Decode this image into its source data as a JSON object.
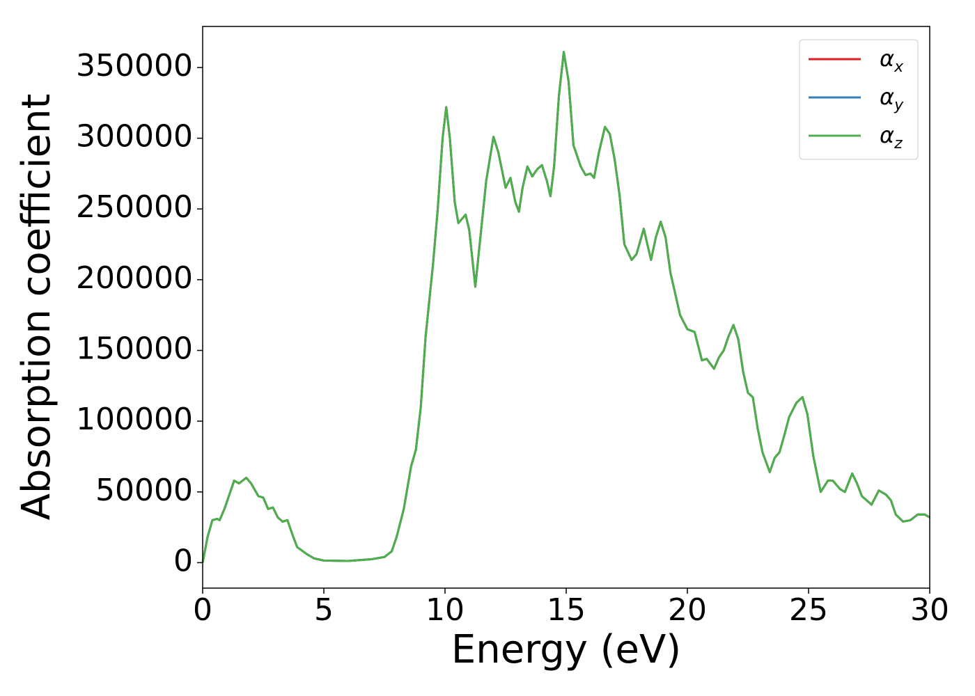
{
  "chart_data": {
    "type": "line",
    "xlabel": "Energy (eV)",
    "ylabel": "Absorption coefficient",
    "x": [
      0,
      0.2,
      0.4,
      0.6,
      0.7,
      0.9,
      1.1,
      1.3,
      1.5,
      1.8,
      2.0,
      2.3,
      2.5,
      2.7,
      2.9,
      3.1,
      3.3,
      3.5,
      3.7,
      3.9,
      4.3,
      4.6,
      5.0,
      6.0,
      7.0,
      7.5,
      7.8,
      8.0,
      8.3,
      8.6,
      8.8,
      9.0,
      9.2,
      9.5,
      9.7,
      9.9,
      10.05,
      10.2,
      10.4,
      10.55,
      10.85,
      11.0,
      11.25,
      11.4,
      11.7,
      12.0,
      12.2,
      12.5,
      12.7,
      12.9,
      13.05,
      13.2,
      13.4,
      13.6,
      13.8,
      14.0,
      14.2,
      14.35,
      14.5,
      14.7,
      14.9,
      15.1,
      15.3,
      15.6,
      15.8,
      16.0,
      16.15,
      16.35,
      16.6,
      16.8,
      17.0,
      17.2,
      17.4,
      17.7,
      17.9,
      18.2,
      18.5,
      18.7,
      18.9,
      19.1,
      19.3,
      19.5,
      19.7,
      20.0,
      20.3,
      20.6,
      20.8,
      21.1,
      21.3,
      21.5,
      21.7,
      21.9,
      22.1,
      22.3,
      22.5,
      22.7,
      22.9,
      23.1,
      23.4,
      23.6,
      23.8,
      24.0,
      24.2,
      24.5,
      24.75,
      24.95,
      25.2,
      25.5,
      25.8,
      26.0,
      26.3,
      26.5,
      26.8,
      27.0,
      27.2,
      27.6,
      27.9,
      28.2,
      28.4,
      28.6,
      28.9,
      29.2,
      29.5,
      29.8,
      30.0
    ],
    "series": [
      {
        "name": "αx",
        "color": "#e41a1c",
        "values": [
          0,
          18000,
          30000,
          31000,
          30000,
          38000,
          48000,
          58000,
          56000,
          60000,
          56000,
          47000,
          46000,
          38000,
          39000,
          32000,
          29000,
          30000,
          20000,
          11000,
          6000,
          3000,
          1500,
          1200,
          2500,
          4000,
          8000,
          18000,
          38000,
          68000,
          80000,
          110000,
          160000,
          210000,
          250000,
          300000,
          322000,
          300000,
          255000,
          240000,
          246000,
          235000,
          195000,
          220000,
          270000,
          301000,
          290000,
          265000,
          272000,
          255000,
          248000,
          265000,
          280000,
          273000,
          278000,
          281000,
          270000,
          259000,
          280000,
          330000,
          361000,
          340000,
          295000,
          280000,
          274000,
          275000,
          272000,
          290000,
          308000,
          303000,
          285000,
          260000,
          225000,
          214000,
          218000,
          236000,
          214000,
          230000,
          241000,
          230000,
          205000,
          190000,
          175000,
          165000,
          163000,
          143000,
          144000,
          137000,
          145000,
          150000,
          160000,
          168000,
          158000,
          135000,
          120000,
          117000,
          95000,
          78000,
          64000,
          74000,
          78000,
          90000,
          103000,
          113000,
          117000,
          105000,
          75000,
          50000,
          58000,
          58000,
          52000,
          50000,
          63000,
          56000,
          47000,
          41000,
          51000,
          48000,
          44000,
          34000,
          29000,
          30000,
          34000,
          34000,
          32000
        ]
      },
      {
        "name": "αy",
        "color": "#377eb8",
        "values": [
          0,
          18000,
          30000,
          31000,
          30000,
          38000,
          48000,
          58000,
          56000,
          60000,
          56000,
          47000,
          46000,
          38000,
          39000,
          32000,
          29000,
          30000,
          20000,
          11000,
          6000,
          3000,
          1500,
          1200,
          2500,
          4000,
          8000,
          18000,
          38000,
          68000,
          80000,
          110000,
          160000,
          210000,
          250000,
          300000,
          322000,
          300000,
          255000,
          240000,
          246000,
          235000,
          195000,
          220000,
          270000,
          301000,
          290000,
          265000,
          272000,
          255000,
          248000,
          265000,
          280000,
          273000,
          278000,
          281000,
          270000,
          259000,
          280000,
          330000,
          361000,
          340000,
          295000,
          280000,
          274000,
          275000,
          272000,
          290000,
          308000,
          303000,
          285000,
          260000,
          225000,
          214000,
          218000,
          236000,
          214000,
          230000,
          241000,
          230000,
          205000,
          190000,
          175000,
          165000,
          163000,
          143000,
          144000,
          137000,
          145000,
          150000,
          160000,
          168000,
          158000,
          135000,
          120000,
          117000,
          95000,
          78000,
          64000,
          74000,
          78000,
          90000,
          103000,
          113000,
          117000,
          105000,
          75000,
          50000,
          58000,
          58000,
          52000,
          50000,
          63000,
          56000,
          47000,
          41000,
          51000,
          48000,
          44000,
          34000,
          29000,
          30000,
          34000,
          34000,
          32000
        ]
      },
      {
        "name": "αz",
        "color": "#4daf4a",
        "values": [
          0,
          18000,
          30000,
          31000,
          30000,
          38000,
          48000,
          58000,
          56000,
          60000,
          56000,
          47000,
          46000,
          38000,
          39000,
          32000,
          29000,
          30000,
          20000,
          11000,
          6000,
          3000,
          1500,
          1200,
          2500,
          4000,
          8000,
          18000,
          38000,
          68000,
          80000,
          110000,
          160000,
          210000,
          250000,
          300000,
          322000,
          300000,
          255000,
          240000,
          246000,
          235000,
          195000,
          220000,
          270000,
          301000,
          290000,
          265000,
          272000,
          255000,
          248000,
          265000,
          280000,
          273000,
          278000,
          281000,
          270000,
          259000,
          280000,
          330000,
          361000,
          340000,
          295000,
          280000,
          274000,
          275000,
          272000,
          290000,
          308000,
          303000,
          285000,
          260000,
          225000,
          214000,
          218000,
          236000,
          214000,
          230000,
          241000,
          230000,
          205000,
          190000,
          175000,
          165000,
          163000,
          143000,
          144000,
          137000,
          145000,
          150000,
          160000,
          168000,
          158000,
          135000,
          120000,
          117000,
          95000,
          78000,
          64000,
          74000,
          78000,
          90000,
          103000,
          113000,
          117000,
          105000,
          75000,
          50000,
          58000,
          58000,
          52000,
          50000,
          63000,
          56000,
          47000,
          41000,
          51000,
          48000,
          44000,
          34000,
          29000,
          30000,
          34000,
          34000,
          32000
        ]
      }
    ],
    "xlim": [
      0,
      30
    ],
    "xticks": [
      0,
      5,
      10,
      15,
      20,
      25,
      30
    ],
    "ylim": [
      -18000,
      379000
    ],
    "yticks": [
      0,
      50000,
      100000,
      150000,
      200000,
      250000,
      300000,
      350000
    ],
    "grid": false,
    "legend": "upper right"
  }
}
